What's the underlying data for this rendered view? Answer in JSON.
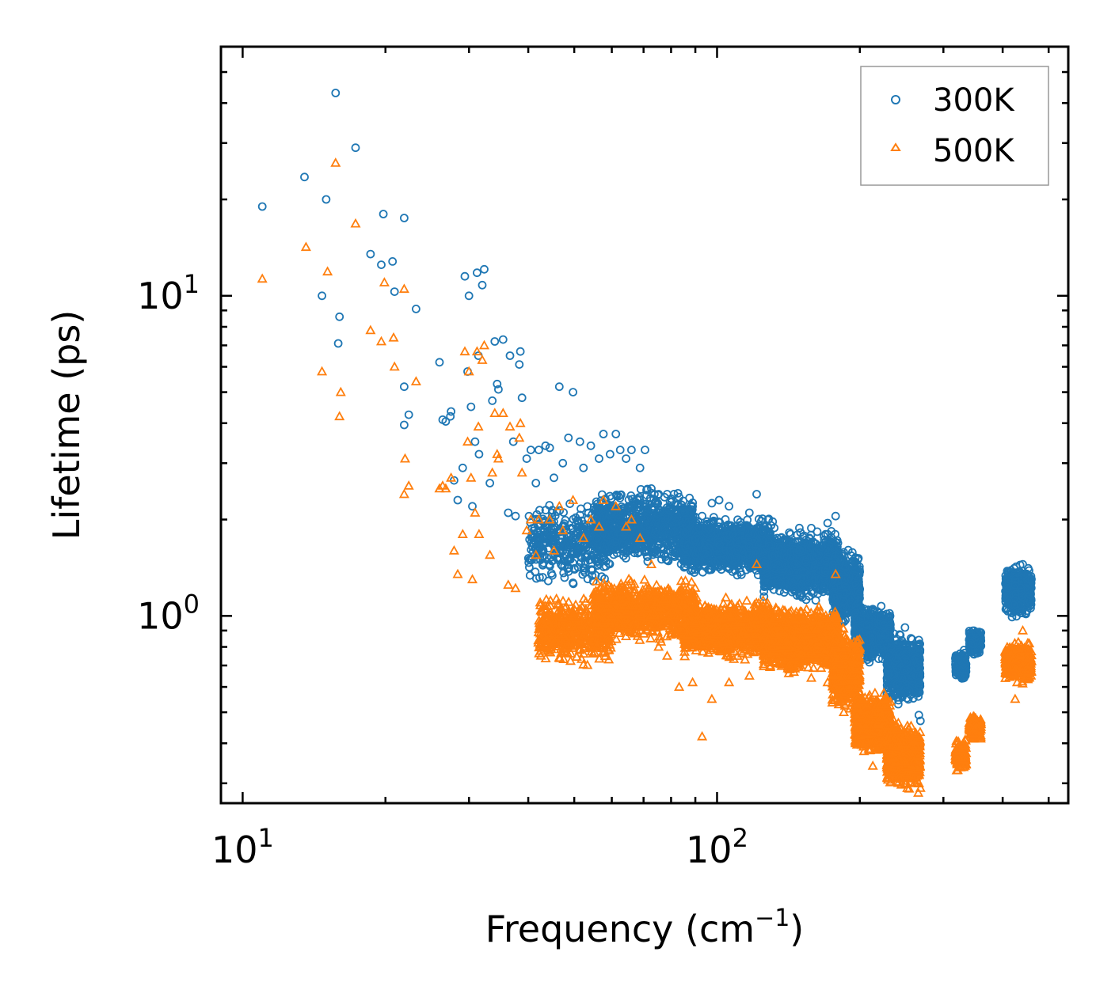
{
  "chart_data": {
    "type": "scatter",
    "title": "",
    "xlabel": "Frequency (cm",
    "xlabel_sup": "−1",
    "xlabel_end": ")",
    "ylabel": "Lifetime (ps)",
    "xscale": "log",
    "yscale": "log",
    "xlim": [
      9.0,
      550
    ],
    "ylim": [
      0.26,
      60
    ],
    "xticks": [
      {
        "value": 10,
        "base": "10",
        "exp": "1"
      },
      {
        "value": 100,
        "base": "10",
        "exp": "2"
      }
    ],
    "yticks": [
      {
        "value": 1,
        "base": "10",
        "exp": "0"
      },
      {
        "value": 10,
        "base": "10",
        "exp": "1"
      }
    ],
    "legend": {
      "placement": "top-right"
    },
    "series": [
      {
        "name": "300K",
        "marker": "circle",
        "color": "#1f77b4",
        "points": [
          [
            11.0,
            19.0
          ],
          [
            13.5,
            23.5
          ],
          [
            14.7,
            10.0
          ],
          [
            15.0,
            20.0
          ],
          [
            15.7,
            43.0
          ],
          [
            15.9,
            7.1
          ],
          [
            16.0,
            8.6
          ],
          [
            17.3,
            29.0
          ],
          [
            18.6,
            13.5
          ],
          [
            19.6,
            12.5
          ],
          [
            19.8,
            18.0
          ],
          [
            20.7,
            12.8
          ],
          [
            20.9,
            10.3
          ],
          [
            21.9,
            17.5
          ],
          [
            21.9,
            3.95
          ],
          [
            21.9,
            5.2
          ],
          [
            22.4,
            4.25
          ],
          [
            23.2,
            9.1
          ],
          [
            26.0,
            6.2
          ],
          [
            26.4,
            4.1
          ],
          [
            26.8,
            4.05
          ],
          [
            27.4,
            4.2
          ],
          [
            27.5,
            4.35
          ],
          [
            27.9,
            2.65
          ],
          [
            28.4,
            2.3
          ],
          [
            29.1,
            2.9
          ],
          [
            29.4,
            11.5
          ],
          [
            29.8,
            5.8
          ],
          [
            30.0,
            10.0
          ],
          [
            30.3,
            4.5
          ],
          [
            30.5,
            2.2
          ],
          [
            30.9,
            3.5
          ],
          [
            31.2,
            11.8
          ],
          [
            31.4,
            6.5
          ],
          [
            31.5,
            3.2
          ],
          [
            32.0,
            10.8
          ],
          [
            32.3,
            12.1
          ],
          [
            33.2,
            2.6
          ],
          [
            33.6,
            4.7
          ],
          [
            34.0,
            7.2
          ],
          [
            34.4,
            5.3
          ],
          [
            34.6,
            5.1
          ],
          [
            35.4,
            7.3
          ],
          [
            36.3,
            2.1
          ],
          [
            36.6,
            6.5
          ],
          [
            37.2,
            3.5
          ],
          [
            37.6,
            2.05
          ],
          [
            38.3,
            6.1
          ],
          [
            38.5,
            6.7
          ],
          [
            38.8,
            4.8
          ],
          [
            39.7,
            3.1
          ],
          [
            40.5,
            3.3
          ],
          [
            41.5,
            2.6
          ],
          [
            42.1,
            3.3
          ],
          [
            43.5,
            3.4
          ],
          [
            44.4,
            3.35
          ],
          [
            45.3,
            2.7
          ],
          [
            46.5,
            5.2
          ],
          [
            47.3,
            3.0
          ],
          [
            48.6,
            3.6
          ],
          [
            49.7,
            5.0
          ],
          [
            51.4,
            3.5
          ],
          [
            52.3,
            2.9
          ],
          [
            54.2,
            3.4
          ],
          [
            56.4,
            3.1
          ],
          [
            57.6,
            3.7
          ],
          [
            59.5,
            3.2
          ],
          [
            61.2,
            3.7
          ],
          [
            62.5,
            3.3
          ],
          [
            64.3,
            3.1
          ],
          [
            66.0,
            3.3
          ],
          [
            68.8,
            2.9
          ],
          [
            70.5,
            3.3
          ],
          [
            72.7,
            2.5
          ],
          [
            75.3,
            2.4
          ],
          [
            78.5,
            2.4
          ],
          [
            83.2,
            2.35
          ],
          [
            88.8,
            2.2
          ],
          [
            93.0,
            2.05
          ],
          [
            97.5,
            2.25
          ],
          [
            101.0,
            2.3
          ],
          [
            106.0,
            2.2
          ],
          [
            117.0,
            2.1
          ],
          [
            121.2,
            2.4
          ],
          [
            131.0,
            1.97
          ],
          [
            142.0,
            1.82
          ],
          [
            158.0,
            1.88
          ],
          [
            171.0,
            1.95
          ],
          [
            177.8,
            2.05
          ],
          [
            185.0,
            1.58
          ],
          [
            196.0,
            1.25
          ],
          [
            213.0,
            1.05
          ],
          [
            225.0,
            1.0
          ],
          [
            236.0,
            0.88
          ],
          [
            249.0,
            0.92
          ],
          [
            263.0,
            0.65
          ],
          [
            265.6,
            0.56
          ],
          [
            266.3,
            0.49
          ],
          [
            268.4,
            0.47
          ],
          [
            328.0,
            0.72
          ],
          [
            345.0,
            0.85
          ],
          [
            352.0,
            0.88
          ],
          [
            409.0,
            1.15
          ],
          [
            425.0,
            1.3
          ],
          [
            441.0,
            1.45
          ],
          [
            455.0,
            1.3
          ]
        ],
        "dense_bands": [
          {
            "x": [
              40,
              60
            ],
            "y": [
              1.2,
              2.4
            ],
            "n": 400
          },
          {
            "x": [
              55,
              90
            ],
            "y": [
              1.35,
              2.6
            ],
            "n": 900
          },
          {
            "x": [
              85,
              130
            ],
            "y": [
              1.3,
              2.1
            ],
            "n": 1200
          },
          {
            "x": [
              125,
              180
            ],
            "y": [
              1.1,
              1.9
            ],
            "n": 1400
          },
          {
            "x": [
              175,
              200
            ],
            "y": [
              0.9,
              1.7
            ],
            "n": 500
          },
          {
            "x": [
              195,
              232
            ],
            "y": [
              0.7,
              1.1
            ],
            "n": 700
          },
          {
            "x": [
              228,
              268
            ],
            "y": [
              0.52,
              0.9
            ],
            "n": 700
          },
          {
            "x": [
              318,
              335
            ],
            "y": [
              0.62,
              0.8
            ],
            "n": 150
          },
          {
            "x": [
              340,
              360
            ],
            "y": [
              0.74,
              0.93
            ],
            "n": 150
          },
          {
            "x": [
              405,
              460
            ],
            "y": [
              0.95,
              1.5
            ],
            "n": 400
          }
        ]
      },
      {
        "name": "500K",
        "marker": "triangle",
        "color": "#ff7f0e",
        "points": [
          [
            11.0,
            11.3
          ],
          [
            13.6,
            14.2
          ],
          [
            14.7,
            5.8
          ],
          [
            15.1,
            11.9
          ],
          [
            15.7,
            26.0
          ],
          [
            16.0,
            4.2
          ],
          [
            16.1,
            5.0
          ],
          [
            17.3,
            16.8
          ],
          [
            18.6,
            7.8
          ],
          [
            19.6,
            7.2
          ],
          [
            19.9,
            11.0
          ],
          [
            20.8,
            7.4
          ],
          [
            20.9,
            6.0
          ],
          [
            21.9,
            10.5
          ],
          [
            21.9,
            2.4
          ],
          [
            22.0,
            3.1
          ],
          [
            22.4,
            2.55
          ],
          [
            23.2,
            5.4
          ],
          [
            26.0,
            2.5
          ],
          [
            26.4,
            2.55
          ],
          [
            26.8,
            2.5
          ],
          [
            27.5,
            2.7
          ],
          [
            27.9,
            1.6
          ],
          [
            28.4,
            1.35
          ],
          [
            29.1,
            1.8
          ],
          [
            29.4,
            6.7
          ],
          [
            29.8,
            3.5
          ],
          [
            30.0,
            5.8
          ],
          [
            30.3,
            2.7
          ],
          [
            30.5,
            1.3
          ],
          [
            30.9,
            2.1
          ],
          [
            31.2,
            6.7
          ],
          [
            31.4,
            3.9
          ],
          [
            31.5,
            1.8
          ],
          [
            32.0,
            6.3
          ],
          [
            32.3,
            7.0
          ],
          [
            33.2,
            1.55
          ],
          [
            33.6,
            2.8
          ],
          [
            34.0,
            4.3
          ],
          [
            34.4,
            3.2
          ],
          [
            34.6,
            3.1
          ],
          [
            35.4,
            4.3
          ],
          [
            36.3,
            1.25
          ],
          [
            36.6,
            3.9
          ],
          [
            37.6,
            1.22
          ],
          [
            38.3,
            3.6
          ],
          [
            38.5,
            4.0
          ],
          [
            38.8,
            2.8
          ],
          [
            39.7,
            1.85
          ],
          [
            40.5,
            2.0
          ],
          [
            41.5,
            1.55
          ],
          [
            42.1,
            2.0
          ],
          [
            43.5,
            0.92
          ],
          [
            44.4,
            2.0
          ],
          [
            45.3,
            1.6
          ],
          [
            46.5,
            2.2
          ],
          [
            47.3,
            1.85
          ],
          [
            49.7,
            2.3
          ],
          [
            52.3,
            1.75
          ],
          [
            54.2,
            2.0
          ],
          [
            56.4,
            1.9
          ],
          [
            57.6,
            2.3
          ],
          [
            61.2,
            2.2
          ],
          [
            64.3,
            1.9
          ],
          [
            66.0,
            2.0
          ],
          [
            68.8,
            1.75
          ],
          [
            72.7,
            1.45
          ],
          [
            75.3,
            0.8
          ],
          [
            78.5,
            0.75
          ],
          [
            83.2,
            0.6
          ],
          [
            88.8,
            0.62
          ],
          [
            93.0,
            0.42
          ],
          [
            97.5,
            0.55
          ],
          [
            106.0,
            0.62
          ],
          [
            117.0,
            0.65
          ],
          [
            121.2,
            1.45
          ],
          [
            131.0,
            0.72
          ],
          [
            142.0,
            0.7
          ],
          [
            158.0,
            0.64
          ],
          [
            171.0,
            0.62
          ],
          [
            177.8,
            1.35
          ],
          [
            185.0,
            0.5
          ],
          [
            196.0,
            0.4
          ],
          [
            213.0,
            0.34
          ],
          [
            225.0,
            0.55
          ],
          [
            236.0,
            0.47
          ],
          [
            249.0,
            0.35
          ],
          [
            263.0,
            0.3
          ],
          [
            265.6,
            0.28
          ],
          [
            266.3,
            0.3
          ],
          [
            268.4,
            0.29
          ],
          [
            328.0,
            0.36
          ],
          [
            345.0,
            0.43
          ],
          [
            352.0,
            0.45
          ],
          [
            409.0,
            0.7
          ],
          [
            425.0,
            0.55
          ],
          [
            441.0,
            0.9
          ],
          [
            455.0,
            0.82
          ]
        ],
        "dense_bands": [
          {
            "x": [
              42,
              60
            ],
            "y": [
              0.68,
              1.2
            ],
            "n": 500
          },
          {
            "x": [
              55,
              90
            ],
            "y": [
              0.8,
              1.35
            ],
            "n": 900
          },
          {
            "x": [
              85,
              130
            ],
            "y": [
              0.72,
              1.15
            ],
            "n": 1200
          },
          {
            "x": [
              125,
              180
            ],
            "y": [
              0.65,
              1.1
            ],
            "n": 1400
          },
          {
            "x": [
              175,
              200
            ],
            "y": [
              0.48,
              0.95
            ],
            "n": 500
          },
          {
            "x": [
              195,
              232
            ],
            "y": [
              0.36,
              0.6
            ],
            "n": 700
          },
          {
            "x": [
              228,
              268
            ],
            "y": [
              0.28,
              0.48
            ],
            "n": 700
          },
          {
            "x": [
              318,
              335
            ],
            "y": [
              0.32,
              0.42
            ],
            "n": 150
          },
          {
            "x": [
              340,
              360
            ],
            "y": [
              0.4,
              0.5
            ],
            "n": 150
          },
          {
            "x": [
              405,
              460
            ],
            "y": [
              0.6,
              0.85
            ],
            "n": 400
          }
        ]
      }
    ]
  }
}
